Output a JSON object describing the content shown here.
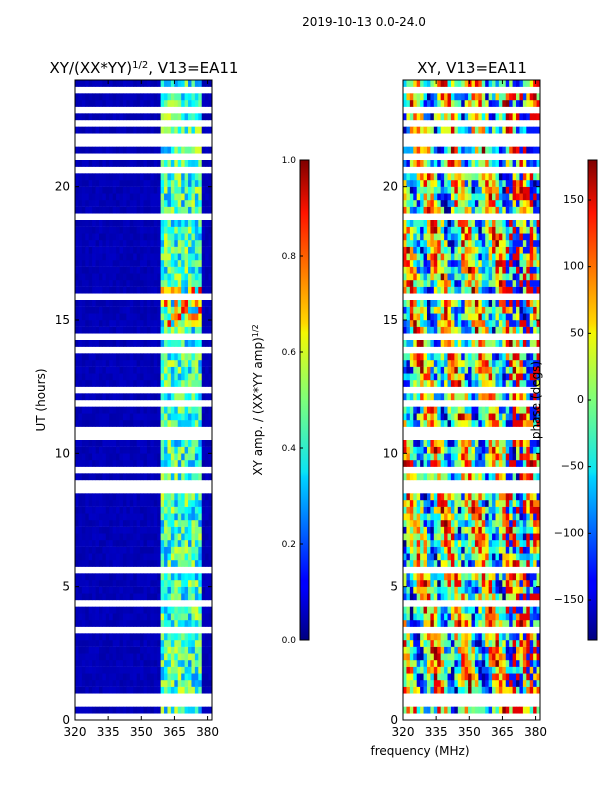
{
  "figure": {
    "suptitle": "2019-10-13 0.0-24.0",
    "xlabel": "frequency (MHz)"
  },
  "chart_data": [
    {
      "type": "heatmap",
      "title_base": "XY/(XX*YY)",
      "title_exp": "1/2",
      "title_tail": ", V13=EA11",
      "ylabel": "UT (hours)",
      "xlim": [
        320,
        382
      ],
      "ylim": [
        0,
        24
      ],
      "xticks": [
        320,
        335,
        350,
        365,
        380
      ],
      "yticks": [
        0,
        5,
        10,
        15,
        20
      ],
      "colorbar": {
        "label_base": "XY amp. / (XX*YY amp)",
        "label_exp": "1/2",
        "range": [
          0.0,
          1.0
        ],
        "ticks": [
          "0.0",
          "0.2",
          "0.4",
          "0.6",
          "0.8",
          "1.0"
        ],
        "colormap": "jet"
      }
    },
    {
      "type": "heatmap",
      "title": "XY, V13=EA11",
      "xlim": [
        320,
        382
      ],
      "ylim": [
        0,
        24
      ],
      "xticks": [
        320,
        335,
        350,
        365,
        380
      ],
      "yticks": [
        0,
        5,
        10,
        15,
        20
      ],
      "colorbar": {
        "label": "phase (degs)",
        "range": [
          -180,
          180
        ],
        "ticks": [
          "−150",
          "−100",
          "−50",
          "0",
          "50",
          "100",
          "150"
        ],
        "colormap": "jet"
      }
    }
  ]
}
